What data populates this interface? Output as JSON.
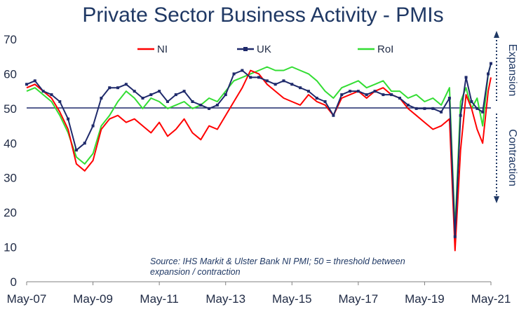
{
  "chart_data": {
    "type": "line",
    "title": "Private Sector Business Activity - PMIs",
    "xlabel": "",
    "ylabel": "",
    "x_tick_labels": [
      "May-07",
      "May-09",
      "May-11",
      "May-13",
      "May-15",
      "May-17",
      "May-19",
      "May-21"
    ],
    "y_tick_labels": [
      "0",
      "10",
      "20",
      "30",
      "40",
      "50",
      "60",
      "70"
    ],
    "xlim": [
      "2007-05",
      "2021-05"
    ],
    "ylim": [
      0,
      70
    ],
    "grid": false,
    "threshold": 50,
    "legend_position": "top",
    "series": [
      {
        "name": "NI",
        "color": "#ff0000",
        "points": [
          [
            "2007-05",
            56
          ],
          [
            "2007-08",
            57
          ],
          [
            "2007-11",
            55
          ],
          [
            "2008-02",
            53
          ],
          [
            "2008-05",
            49
          ],
          [
            "2008-08",
            44
          ],
          [
            "2008-11",
            34
          ],
          [
            "2009-02",
            32
          ],
          [
            "2009-05",
            35
          ],
          [
            "2009-08",
            44
          ],
          [
            "2009-11",
            47
          ],
          [
            "2010-02",
            48
          ],
          [
            "2010-05",
            46
          ],
          [
            "2010-08",
            47
          ],
          [
            "2010-11",
            45
          ],
          [
            "2011-02",
            43
          ],
          [
            "2011-05",
            46
          ],
          [
            "2011-08",
            42
          ],
          [
            "2011-11",
            44
          ],
          [
            "2012-02",
            47
          ],
          [
            "2012-05",
            43
          ],
          [
            "2012-08",
            41
          ],
          [
            "2012-11",
            45
          ],
          [
            "2013-02",
            44
          ],
          [
            "2013-05",
            48
          ],
          [
            "2013-08",
            52
          ],
          [
            "2013-11",
            56
          ],
          [
            "2014-02",
            61
          ],
          [
            "2014-05",
            60
          ],
          [
            "2014-08",
            57
          ],
          [
            "2014-11",
            55
          ],
          [
            "2015-02",
            53
          ],
          [
            "2015-05",
            52
          ],
          [
            "2015-08",
            51
          ],
          [
            "2015-11",
            54
          ],
          [
            "2016-02",
            52
          ],
          [
            "2016-05",
            51
          ],
          [
            "2016-08",
            48
          ],
          [
            "2016-11",
            53
          ],
          [
            "2017-02",
            54
          ],
          [
            "2017-05",
            55
          ],
          [
            "2017-08",
            53
          ],
          [
            "2017-11",
            55
          ],
          [
            "2018-02",
            56
          ],
          [
            "2018-05",
            54
          ],
          [
            "2018-08",
            53
          ],
          [
            "2018-11",
            50
          ],
          [
            "2019-02",
            48
          ],
          [
            "2019-05",
            46
          ],
          [
            "2019-08",
            44
          ],
          [
            "2019-11",
            45
          ],
          [
            "2020-02",
            47
          ],
          [
            "2020-04",
            9
          ],
          [
            "2020-06",
            38
          ],
          [
            "2020-08",
            54
          ],
          [
            "2020-10",
            50
          ],
          [
            "2020-12",
            44
          ],
          [
            "2021-02",
            40
          ],
          [
            "2021-04",
            55
          ],
          [
            "2021-05",
            59
          ]
        ]
      },
      {
        "name": "UK",
        "color": "#1f2a6b",
        "points": [
          [
            "2007-05",
            57
          ],
          [
            "2007-08",
            58
          ],
          [
            "2007-11",
            55
          ],
          [
            "2008-02",
            54
          ],
          [
            "2008-05",
            52
          ],
          [
            "2008-08",
            47
          ],
          [
            "2008-11",
            38
          ],
          [
            "2009-02",
            40
          ],
          [
            "2009-05",
            45
          ],
          [
            "2009-08",
            53
          ],
          [
            "2009-11",
            56
          ],
          [
            "2010-02",
            56
          ],
          [
            "2010-05",
            57
          ],
          [
            "2010-08",
            55
          ],
          [
            "2010-11",
            53
          ],
          [
            "2011-02",
            54
          ],
          [
            "2011-05",
            55
          ],
          [
            "2011-08",
            52
          ],
          [
            "2011-11",
            54
          ],
          [
            "2012-02",
            55
          ],
          [
            "2012-05",
            52
          ],
          [
            "2012-08",
            51
          ],
          [
            "2012-11",
            50
          ],
          [
            "2013-02",
            51
          ],
          [
            "2013-05",
            54
          ],
          [
            "2013-08",
            60
          ],
          [
            "2013-11",
            61
          ],
          [
            "2014-02",
            59
          ],
          [
            "2014-05",
            59
          ],
          [
            "2014-08",
            58
          ],
          [
            "2014-11",
            57
          ],
          [
            "2015-02",
            58
          ],
          [
            "2015-05",
            57
          ],
          [
            "2015-08",
            56
          ],
          [
            "2015-11",
            55
          ],
          [
            "2016-02",
            53
          ],
          [
            "2016-05",
            52
          ],
          [
            "2016-08",
            48
          ],
          [
            "2016-11",
            54
          ],
          [
            "2017-02",
            55
          ],
          [
            "2017-05",
            55
          ],
          [
            "2017-08",
            54
          ],
          [
            "2017-11",
            55
          ],
          [
            "2018-02",
            54
          ],
          [
            "2018-05",
            54
          ],
          [
            "2018-08",
            53
          ],
          [
            "2018-11",
            51
          ],
          [
            "2019-02",
            50
          ],
          [
            "2019-05",
            50
          ],
          [
            "2019-08",
            50
          ],
          [
            "2019-11",
            49
          ],
          [
            "2020-02",
            53
          ],
          [
            "2020-04",
            13
          ],
          [
            "2020-06",
            48
          ],
          [
            "2020-08",
            59
          ],
          [
            "2020-10",
            52
          ],
          [
            "2020-12",
            50
          ],
          [
            "2021-02",
            49
          ],
          [
            "2021-04",
            60
          ],
          [
            "2021-05",
            63
          ]
        ]
      },
      {
        "name": "RoI",
        "color": "#33dd33",
        "points": [
          [
            "2007-05",
            55
          ],
          [
            "2007-08",
            56
          ],
          [
            "2007-11",
            54
          ],
          [
            "2008-02",
            52
          ],
          [
            "2008-05",
            48
          ],
          [
            "2008-08",
            43
          ],
          [
            "2008-11",
            36
          ],
          [
            "2009-02",
            34
          ],
          [
            "2009-05",
            37
          ],
          [
            "2009-08",
            45
          ],
          [
            "2009-11",
            48
          ],
          [
            "2010-02",
            52
          ],
          [
            "2010-05",
            55
          ],
          [
            "2010-08",
            53
          ],
          [
            "2010-11",
            50
          ],
          [
            "2011-02",
            53
          ],
          [
            "2011-05",
            52
          ],
          [
            "2011-08",
            50
          ],
          [
            "2011-11",
            51
          ],
          [
            "2012-02",
            52
          ],
          [
            "2012-05",
            50
          ],
          [
            "2012-08",
            51
          ],
          [
            "2012-11",
            53
          ],
          [
            "2013-02",
            52
          ],
          [
            "2013-05",
            55
          ],
          [
            "2013-08",
            58
          ],
          [
            "2013-11",
            59
          ],
          [
            "2014-02",
            60
          ],
          [
            "2014-05",
            61
          ],
          [
            "2014-08",
            62
          ],
          [
            "2014-11",
            61
          ],
          [
            "2015-02",
            61
          ],
          [
            "2015-05",
            62
          ],
          [
            "2015-08",
            61
          ],
          [
            "2015-11",
            60
          ],
          [
            "2016-02",
            58
          ],
          [
            "2016-05",
            55
          ],
          [
            "2016-08",
            53
          ],
          [
            "2016-11",
            56
          ],
          [
            "2017-02",
            57
          ],
          [
            "2017-05",
            58
          ],
          [
            "2017-08",
            56
          ],
          [
            "2017-11",
            57
          ],
          [
            "2018-02",
            58
          ],
          [
            "2018-05",
            55
          ],
          [
            "2018-08",
            55
          ],
          [
            "2018-11",
            53
          ],
          [
            "2019-02",
            54
          ],
          [
            "2019-05",
            52
          ],
          [
            "2019-08",
            53
          ],
          [
            "2019-11",
            51
          ],
          [
            "2020-02",
            56
          ],
          [
            "2020-04",
            15
          ],
          [
            "2020-06",
            52
          ],
          [
            "2020-08",
            56
          ],
          [
            "2020-10",
            50
          ],
          [
            "2020-12",
            53
          ],
          [
            "2021-02",
            45
          ],
          [
            "2021-04",
            60
          ],
          [
            "2021-05",
            63
          ]
        ]
      }
    ],
    "annotations": {
      "expansion": "Expansion",
      "contraction": "Contraction",
      "source_line1": "Source: IHS Markit & Ulster Bank NI PMI; 50 = threshold between",
      "source_line2": "expansion / contraction"
    }
  }
}
